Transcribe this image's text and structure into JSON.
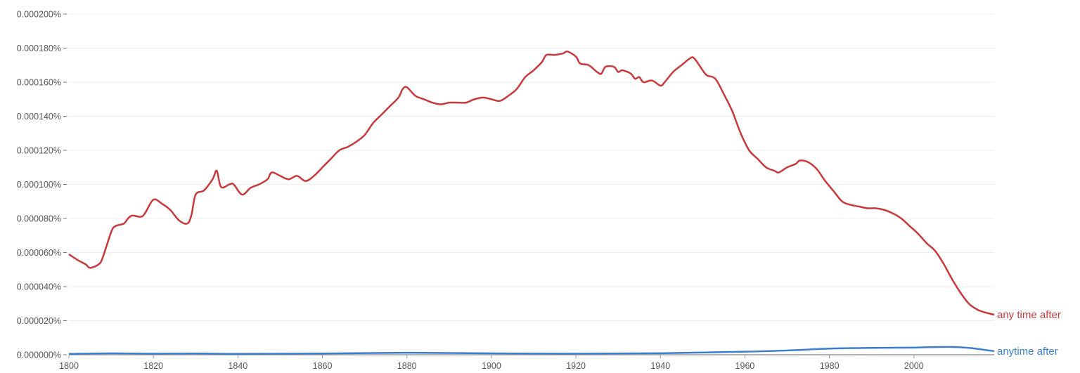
{
  "chart_data": {
    "type": "line",
    "title": "",
    "xlabel": "",
    "ylabel": "",
    "xlim": [
      1800,
      2019
    ],
    "ylim": [
      0,
      0.0002
    ],
    "grid": true,
    "legend": "inline-right",
    "x_ticks": [
      "1800",
      "1820",
      "1840",
      "1860",
      "1880",
      "1900",
      "1920",
      "1940",
      "1960",
      "1980",
      "2000"
    ],
    "y_ticks": [
      "0.000000%",
      "0.000020%",
      "0.000040%",
      "0.000060%",
      "0.000080%",
      "0.000100%",
      "0.000120%",
      "0.000140%",
      "0.000160%",
      "0.000180%",
      "0.000200%"
    ],
    "series": [
      {
        "name": "any time after",
        "color": "#c9393b",
        "points": [
          [
            1800,
            5.9e-05
          ],
          [
            1802,
            5.57e-05
          ],
          [
            1804,
            5.3e-05
          ],
          [
            1805,
            5.1e-05
          ],
          [
            1807,
            5.3e-05
          ],
          [
            1808,
            5.7e-05
          ],
          [
            1810,
            7.2e-05
          ],
          [
            1811,
            7.55e-05
          ],
          [
            1813,
            7.7e-05
          ],
          [
            1814,
            8e-05
          ],
          [
            1815,
            8.17e-05
          ],
          [
            1817,
            8.1e-05
          ],
          [
            1818,
            8.3e-05
          ],
          [
            1820,
            9.1e-05
          ],
          [
            1822,
            8.87e-05
          ],
          [
            1824,
            8.5e-05
          ],
          [
            1826,
            7.9e-05
          ],
          [
            1828,
            7.7e-05
          ],
          [
            1829,
            8.2e-05
          ],
          [
            1830,
            9.4e-05
          ],
          [
            1832,
            9.65e-05
          ],
          [
            1834,
            0.000103
          ],
          [
            1835,
            0.000108
          ],
          [
            1836,
            9.85e-05
          ],
          [
            1838,
            0.0001
          ],
          [
            1839,
            0.0001
          ],
          [
            1841,
            9.4e-05
          ],
          [
            1843,
            9.8e-05
          ],
          [
            1845,
            0.0001
          ],
          [
            1847,
            0.000103
          ],
          [
            1848,
            0.000107
          ],
          [
            1850,
            0.000105
          ],
          [
            1852,
            0.000103
          ],
          [
            1854,
            0.000105
          ],
          [
            1856,
            0.000102
          ],
          [
            1858,
            0.000105
          ],
          [
            1860,
            0.00011
          ],
          [
            1862,
            0.000115
          ],
          [
            1864,
            0.00012
          ],
          [
            1866,
            0.000122
          ],
          [
            1868,
            0.000125
          ],
          [
            1870,
            0.000129
          ],
          [
            1872,
            0.000136
          ],
          [
            1874,
            0.000141
          ],
          [
            1876,
            0.000146
          ],
          [
            1878,
            0.000151
          ],
          [
            1879,
            0.000156
          ],
          [
            1880,
            0.000157
          ],
          [
            1882,
            0.000152
          ],
          [
            1884,
            0.00015
          ],
          [
            1886,
            0.000148
          ],
          [
            1888,
            0.000147
          ],
          [
            1890,
            0.000148
          ],
          [
            1892,
            0.000148
          ],
          [
            1894,
            0.000148
          ],
          [
            1896,
            0.00015
          ],
          [
            1898,
            0.000151
          ],
          [
            1900,
            0.00015
          ],
          [
            1902,
            0.000149
          ],
          [
            1904,
            0.000152
          ],
          [
            1906,
            0.000156
          ],
          [
            1908,
            0.000163
          ],
          [
            1910,
            0.000167
          ],
          [
            1912,
            0.000172
          ],
          [
            1913,
            0.000176
          ],
          [
            1915,
            0.000176
          ],
          [
            1917,
            0.000177
          ],
          [
            1918,
            0.000178
          ],
          [
            1920,
            0.000175
          ],
          [
            1921,
            0.000171
          ],
          [
            1923,
            0.00017
          ],
          [
            1925,
            0.000166
          ],
          [
            1926,
            0.000165
          ],
          [
            1927,
            0.000169
          ],
          [
            1929,
            0.000169
          ],
          [
            1930,
            0.000166
          ],
          [
            1931,
            0.000167
          ],
          [
            1933,
            0.000165
          ],
          [
            1934,
            0.000162
          ],
          [
            1935,
            0.000163
          ],
          [
            1936,
            0.00016
          ],
          [
            1938,
            0.000161
          ],
          [
            1940,
            0.000158
          ],
          [
            1941,
            0.00016
          ],
          [
            1943,
            0.000166
          ],
          [
            1945,
            0.00017
          ],
          [
            1947,
            0.000174
          ],
          [
            1948,
            0.000174
          ],
          [
            1950,
            0.000167
          ],
          [
            1951,
            0.000164
          ],
          [
            1953,
            0.000162
          ],
          [
            1955,
            0.000153
          ],
          [
            1957,
            0.000143
          ],
          [
            1959,
            0.00013
          ],
          [
            1961,
            0.00012
          ],
          [
            1963,
            0.000115
          ],
          [
            1965,
            0.00011
          ],
          [
            1967,
            0.000108
          ],
          [
            1968,
            0.000107
          ],
          [
            1970,
            0.00011
          ],
          [
            1972,
            0.000112
          ],
          [
            1973,
            0.000114
          ],
          [
            1975,
            0.000113
          ],
          [
            1977,
            0.000109
          ],
          [
            1979,
            0.000102
          ],
          [
            1981,
            9.6e-05
          ],
          [
            1983,
            9e-05
          ],
          [
            1985,
            8.8e-05
          ],
          [
            1987,
            8.7e-05
          ],
          [
            1989,
            8.6e-05
          ],
          [
            1991,
            8.6e-05
          ],
          [
            1993,
            8.5e-05
          ],
          [
            1995,
            8.3e-05
          ],
          [
            1997,
            8e-05
          ],
          [
            1999,
            7.55e-05
          ],
          [
            2001,
            7.1e-05
          ],
          [
            2003,
            6.55e-05
          ],
          [
            2005,
            6.1e-05
          ],
          [
            2007,
            5.35e-05
          ],
          [
            2009,
            4.45e-05
          ],
          [
            2011,
            3.65e-05
          ],
          [
            2013,
            3e-05
          ],
          [
            2015,
            2.65e-05
          ],
          [
            2017,
            2.47e-05
          ],
          [
            2019,
            2.35e-05
          ]
        ]
      },
      {
        "name": "anytime after",
        "color": "#3a7fcf",
        "points": [
          [
            1800,
            5e-07
          ],
          [
            1810,
            8e-07
          ],
          [
            1820,
            6e-07
          ],
          [
            1830,
            7e-07
          ],
          [
            1840,
            5e-07
          ],
          [
            1860,
            7e-07
          ],
          [
            1880,
            1.2e-06
          ],
          [
            1900,
            8e-07
          ],
          [
            1920,
            6e-07
          ],
          [
            1940,
            9e-07
          ],
          [
            1960,
            1.8e-06
          ],
          [
            1970,
            2.5e-06
          ],
          [
            1980,
            3.6e-06
          ],
          [
            1990,
            4e-06
          ],
          [
            2000,
            4.2e-06
          ],
          [
            2008,
            4.6e-06
          ],
          [
            2013,
            4e-06
          ],
          [
            2019,
            2.1e-06
          ]
        ]
      }
    ]
  }
}
